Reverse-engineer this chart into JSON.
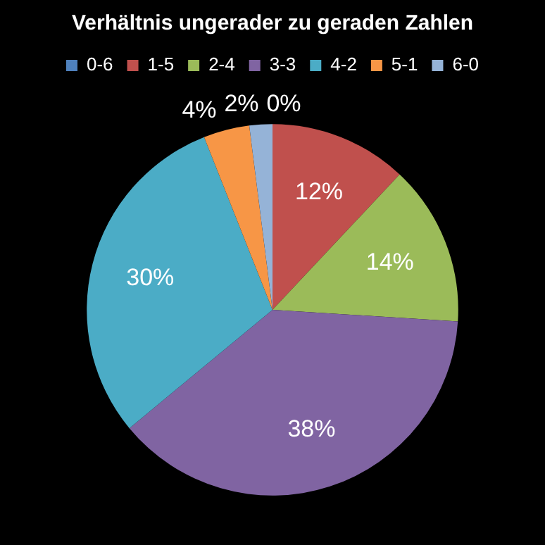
{
  "chart_data": {
    "type": "pie",
    "title": "Verhältnis ungerader zu geraden Zahlen",
    "categories": [
      "0-6",
      "1-5",
      "2-4",
      "3-3",
      "4-2",
      "5-1",
      "6-0"
    ],
    "values": [
      0,
      12,
      14,
      38,
      30,
      4,
      2
    ],
    "colors": [
      "#4f81bd",
      "#c0504d",
      "#9bbb59",
      "#8064a2",
      "#4bacc6",
      "#f79646",
      "#95b3d7"
    ],
    "value_labels": [
      "0%",
      "12%",
      "14%",
      "38%",
      "30%",
      "4%",
      "2%"
    ],
    "legend": "top"
  }
}
